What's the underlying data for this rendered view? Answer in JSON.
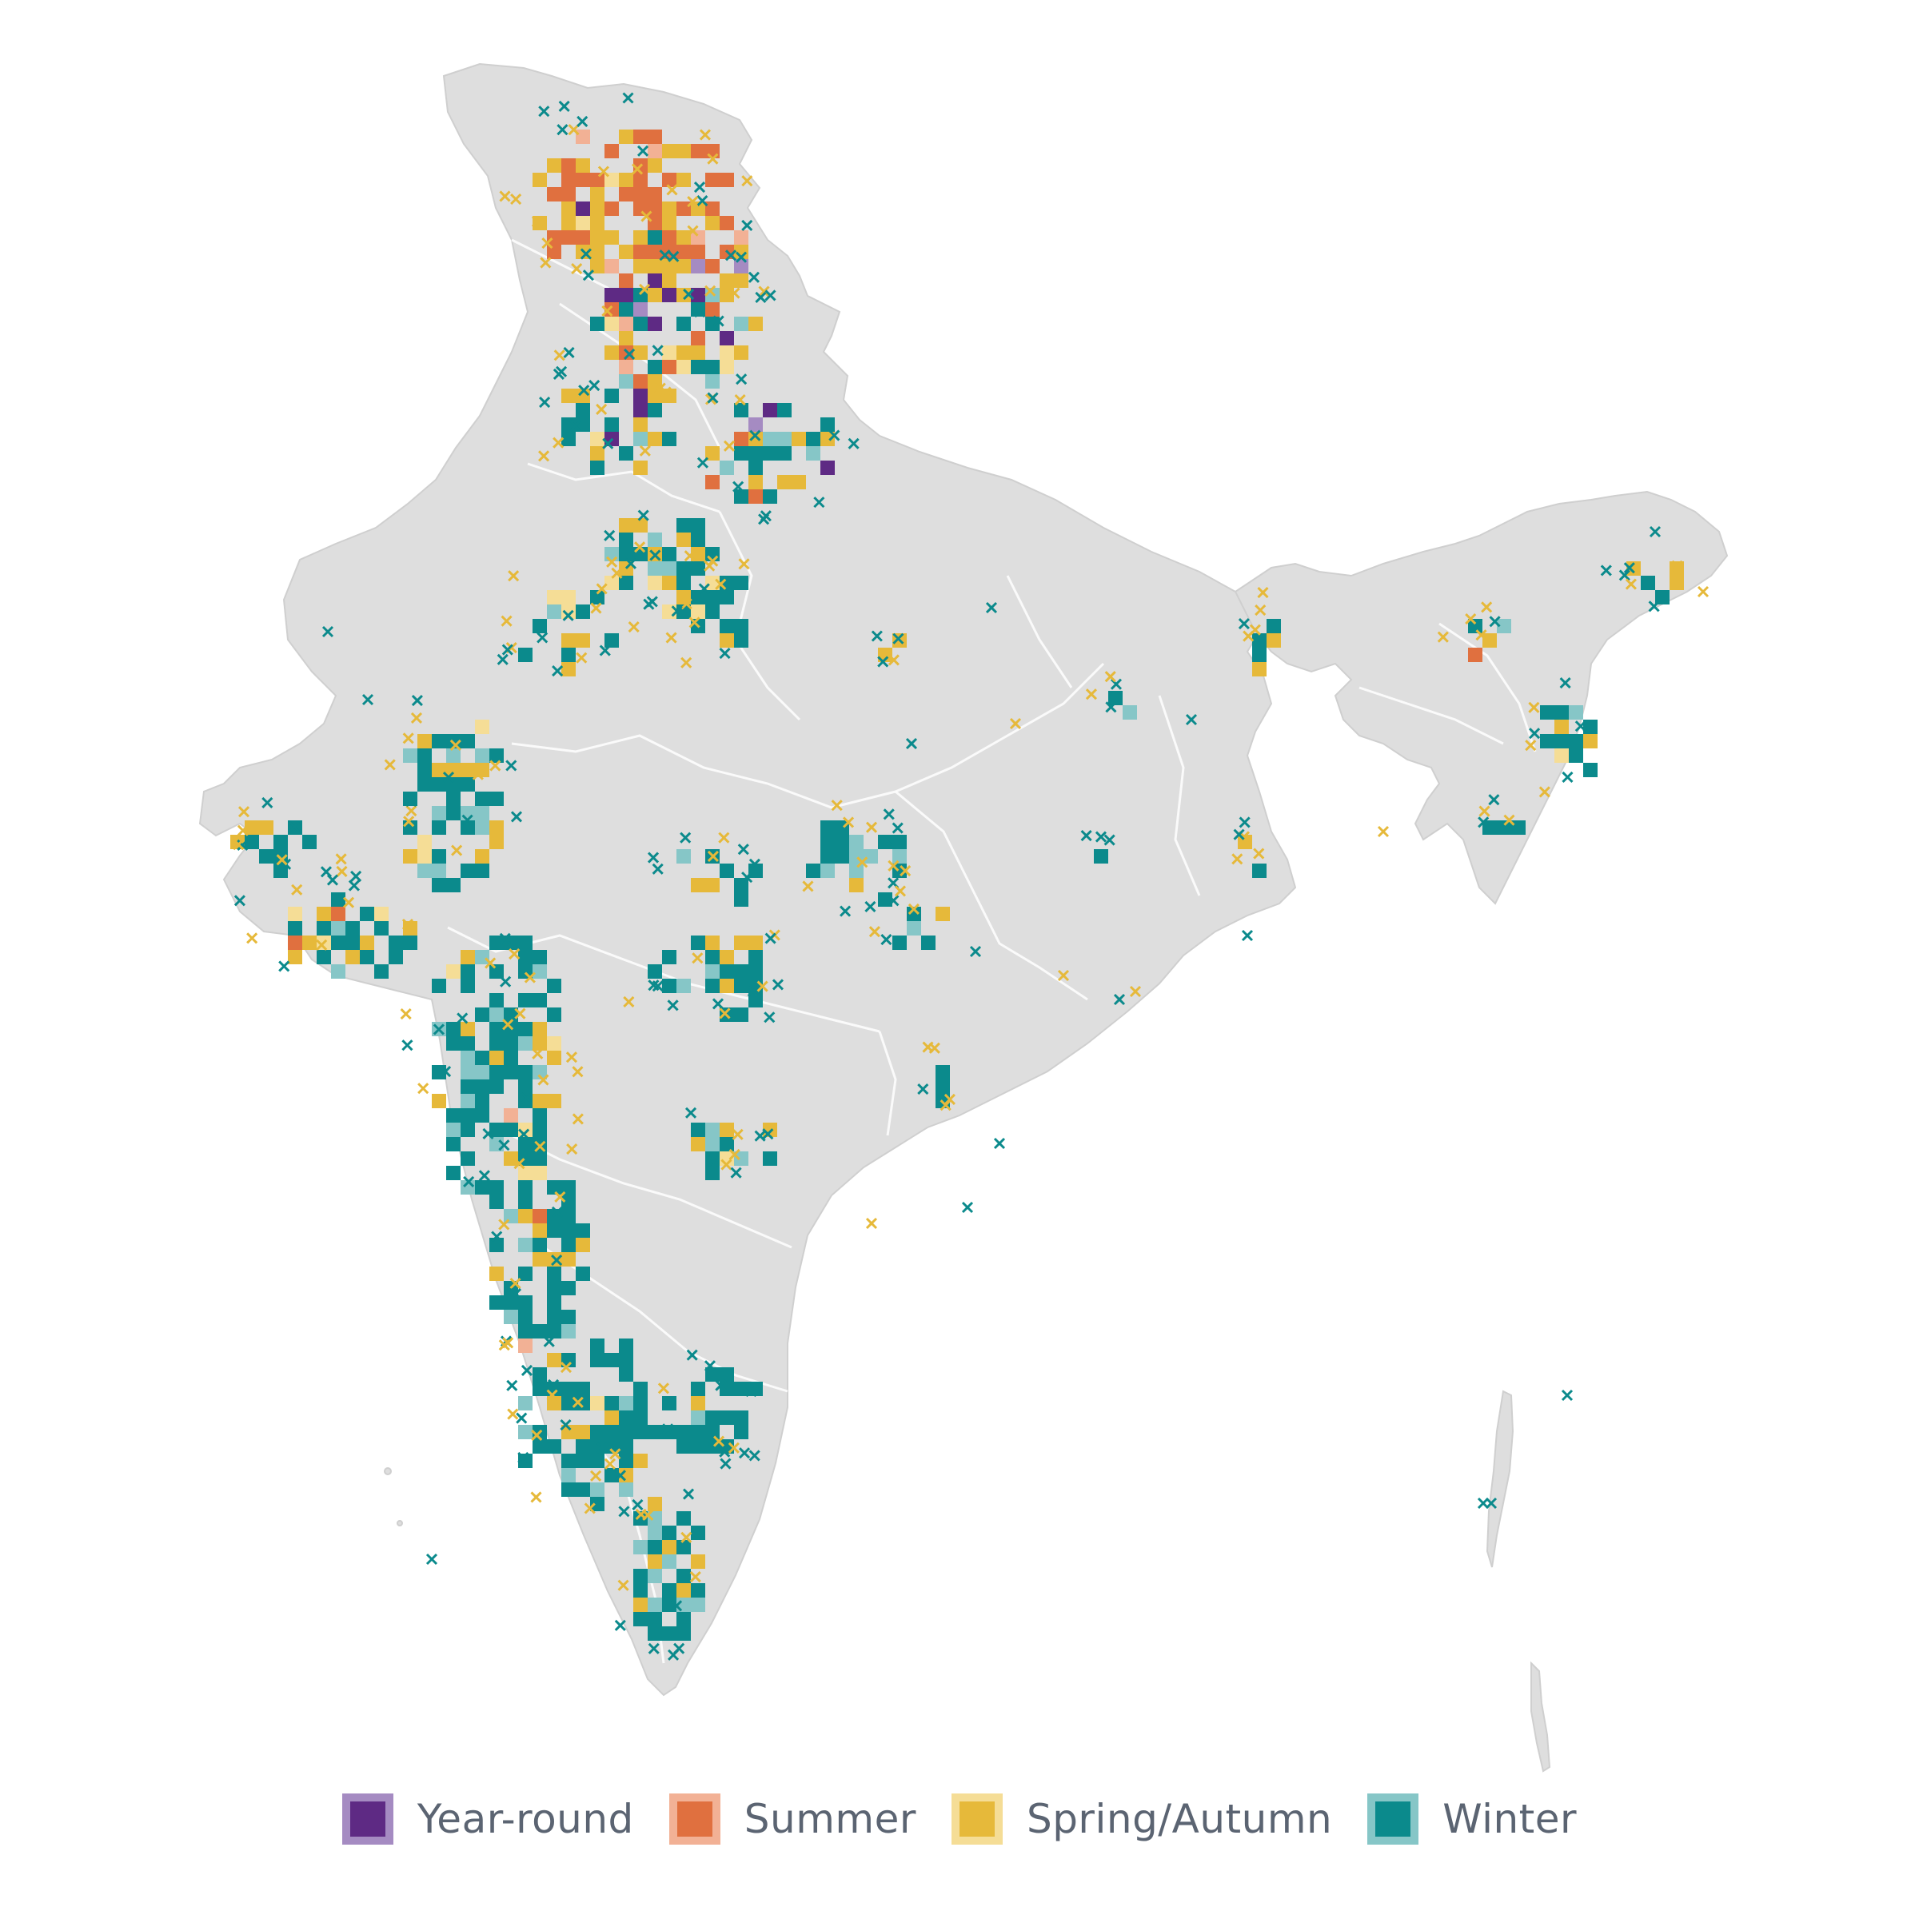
{
  "legend": {
    "items": [
      {
        "label": "Year-round",
        "color": "#5e2a84",
        "light": "#a58bc2"
      },
      {
        "label": "Summer",
        "color": "#e0703f",
        "light": "#f2b195"
      },
      {
        "label": "Spring/Autumn",
        "color": "#e6b93a",
        "light": "#f5dd96"
      },
      {
        "label": "Winter",
        "color": "#0b8a8c",
        "light": "#86c6c7"
      }
    ]
  },
  "map": {
    "land_color": "#dedede",
    "border_color": "#ffffff",
    "shadow_color": "#c9c9c9"
  }
}
